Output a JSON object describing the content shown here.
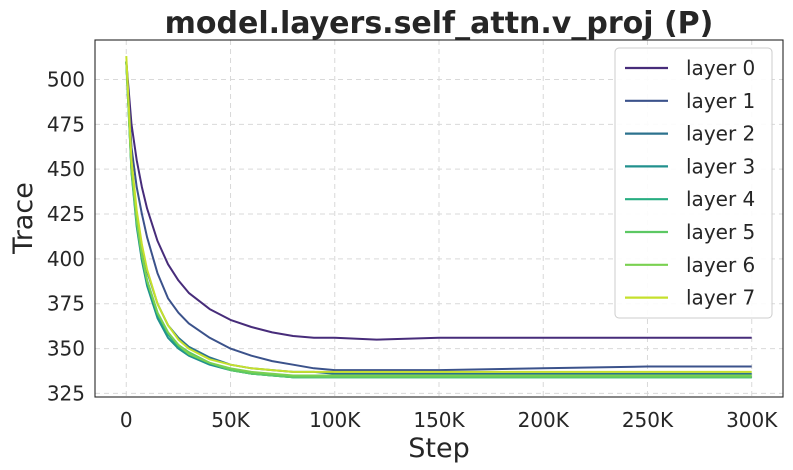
{
  "chart_data": {
    "type": "line",
    "title": "model.layers.self_attn.v_proj (P)",
    "xlabel": "Step",
    "ylabel": "Trace",
    "xlim": [
      -15000,
      315000
    ],
    "ylim": [
      323,
      522
    ],
    "x_ticks": [
      0,
      50000,
      100000,
      150000,
      200000,
      250000,
      300000
    ],
    "x_tick_labels": [
      "0",
      "50K",
      "100K",
      "150K",
      "200K",
      "250K",
      "300K"
    ],
    "y_ticks": [
      325,
      350,
      375,
      400,
      425,
      450,
      475,
      500
    ],
    "y_tick_labels": [
      "325",
      "350",
      "375",
      "400",
      "425",
      "450",
      "475",
      "500"
    ],
    "grid": true,
    "legend_position": "top-right",
    "x": [
      0,
      2500,
      5000,
      7500,
      10000,
      15000,
      20000,
      25000,
      30000,
      40000,
      50000,
      60000,
      70000,
      80000,
      90000,
      100000,
      120000,
      150000,
      200000,
      250000,
      300000
    ],
    "series": [
      {
        "name": "layer 0",
        "color": "#472c7a",
        "values": [
          510,
          475,
          455,
          440,
          428,
          410,
          397,
          388,
          381,
          372,
          366,
          362,
          359,
          357,
          356,
          356,
          355,
          356,
          356,
          356,
          356
        ]
      },
      {
        "name": "layer 1",
        "color": "#3b528b",
        "values": [
          510,
          462,
          440,
          425,
          412,
          392,
          378,
          370,
          364,
          356,
          350,
          346,
          343,
          341,
          339,
          338,
          338,
          338,
          339,
          340,
          340
        ]
      },
      {
        "name": "layer 2",
        "color": "#2c728e",
        "values": [
          510,
          452,
          425,
          407,
          393,
          375,
          363,
          356,
          351,
          345,
          341,
          339,
          338,
          337,
          337,
          336,
          336,
          336,
          336,
          336,
          336
        ]
      },
      {
        "name": "layer 3",
        "color": "#21908d",
        "values": [
          510,
          448,
          418,
          399,
          385,
          367,
          356,
          350,
          346,
          341,
          338,
          336,
          335,
          334,
          334,
          334,
          334,
          334,
          334,
          334,
          334
        ]
      },
      {
        "name": "layer 4",
        "color": "#27ad81",
        "values": [
          510,
          449,
          420,
          401,
          387,
          369,
          358,
          351,
          347,
          342,
          338,
          336,
          335,
          334,
          334,
          334,
          334,
          334,
          334,
          334,
          334
        ]
      },
      {
        "name": "layer 5",
        "color": "#5cc863",
        "values": [
          510,
          450,
          421,
          402,
          388,
          370,
          359,
          352,
          348,
          342,
          338,
          336,
          335,
          334,
          334,
          334,
          334,
          334,
          334,
          334,
          334
        ]
      },
      {
        "name": "layer 6",
        "color": "#7ad151",
        "values": [
          510,
          450,
          421,
          402,
          388,
          370,
          359,
          352,
          347,
          342,
          339,
          337,
          336,
          335,
          335,
          335,
          335,
          335,
          335,
          335,
          335
        ]
      },
      {
        "name": "layer 7",
        "color": "#c6e02c",
        "values": [
          513,
          455,
          427,
          408,
          394,
          375,
          363,
          355,
          350,
          344,
          341,
          339,
          338,
          337,
          337,
          337,
          337,
          337,
          337,
          337,
          337
        ]
      }
    ]
  }
}
